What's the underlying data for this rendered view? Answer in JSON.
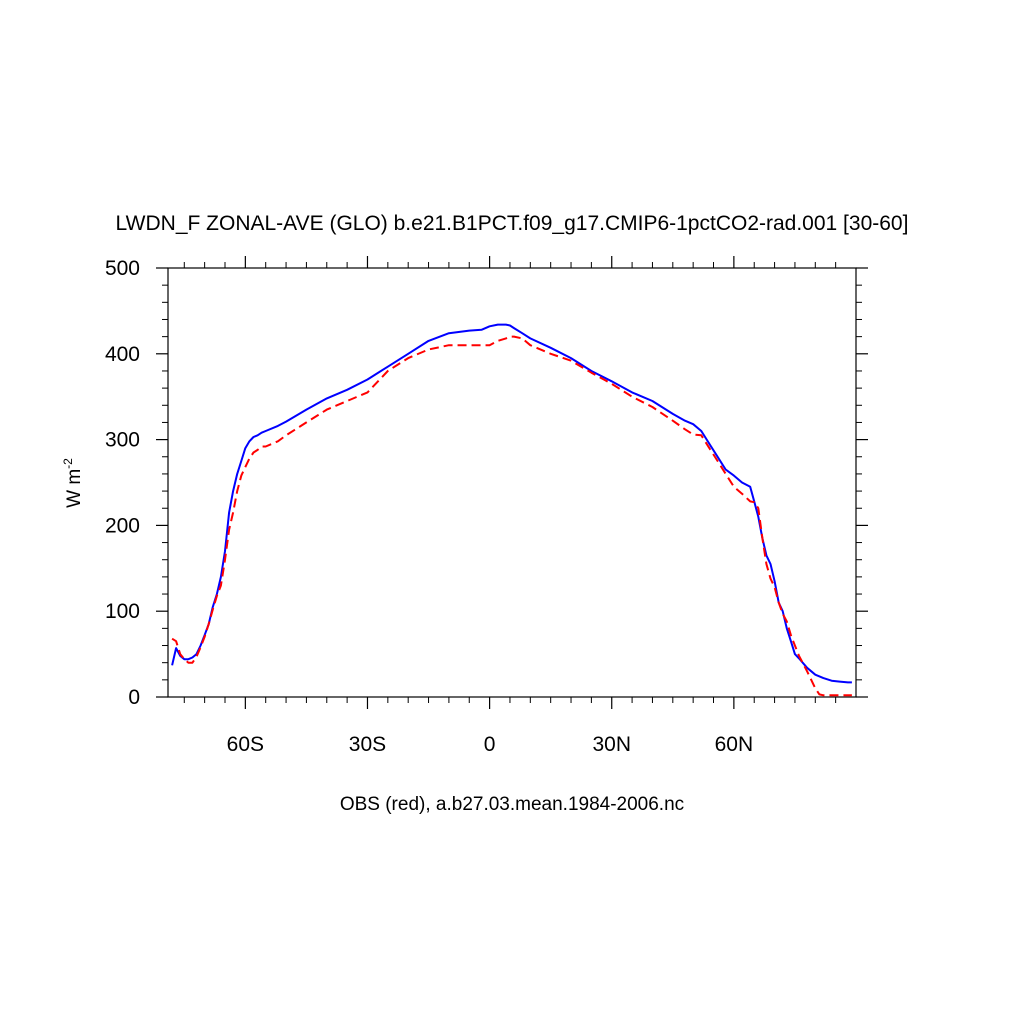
{
  "chart_data": {
    "type": "line",
    "title": "LWDN_F ZONAL-AVE (GLO) b.e21.B1PCT.f09_g17.CMIP6-1pctCO2-rad.001 [30-60]",
    "xlabel": "OBS (red), a.b27.03.mean.1984-2006.nc",
    "ylabel": "W m",
    "ylabel_superscript": "-2",
    "xlim": [
      -79,
      90
    ],
    "ylim": [
      0,
      500
    ],
    "grid": false,
    "legend": "none",
    "x_ticks": [
      {
        "value": -60,
        "label": "60S"
      },
      {
        "value": -30,
        "label": "30S"
      },
      {
        "value": 0,
        "label": "0"
      },
      {
        "value": 30,
        "label": "30N"
      },
      {
        "value": 60,
        "label": "60N"
      }
    ],
    "y_ticks": [
      {
        "value": 0,
        "label": "0"
      },
      {
        "value": 100,
        "label": "100"
      },
      {
        "value": 200,
        "label": "200"
      },
      {
        "value": 300,
        "label": "300"
      },
      {
        "value": 400,
        "label": "400"
      },
      {
        "value": 500,
        "label": "500"
      }
    ],
    "series": [
      {
        "color": "#0000ff",
        "style": "solid",
        "x": [
          -78,
          -77,
          -76,
          -75,
          -74,
          -73,
          -72,
          -71,
          -70,
          -69,
          -68,
          -67,
          -66,
          -65,
          -64,
          -63,
          -62,
          -61,
          -60,
          -59,
          -58,
          -57,
          -56,
          -55,
          -52,
          -50,
          -45,
          -40,
          -35,
          -30,
          -25,
          -20,
          -15,
          -10,
          -5,
          -2,
          0,
          2,
          4,
          5,
          6,
          8,
          10,
          15,
          20,
          25,
          30,
          35,
          40,
          45,
          48,
          50,
          52,
          54,
          56,
          58,
          60,
          62,
          64,
          65,
          66,
          67,
          68,
          69,
          70,
          71,
          72,
          73,
          74,
          75,
          76,
          78,
          80,
          82,
          84,
          86,
          88,
          89
        ],
        "y": [
          37,
          57,
          48,
          44,
          44,
          46,
          50,
          60,
          72,
          85,
          105,
          120,
          140,
          170,
          215,
          240,
          260,
          275,
          290,
          298,
          303,
          305,
          308,
          310,
          316,
          321,
          335,
          348,
          358,
          370,
          385,
          400,
          415,
          424,
          427,
          428,
          432,
          434,
          434,
          433,
          430,
          424,
          418,
          407,
          395,
          380,
          368,
          355,
          345,
          330,
          322,
          318,
          310,
          295,
          280,
          265,
          258,
          250,
          245,
          228,
          210,
          185,
          165,
          155,
          135,
          110,
          100,
          80,
          65,
          50,
          45,
          34,
          26,
          22,
          19,
          18,
          17,
          17
        ]
      },
      {
        "color": "#ff0000",
        "style": "dashed",
        "x": [
          -78,
          -77,
          -76,
          -75,
          -74,
          -73,
          -72,
          -71,
          -70,
          -69,
          -68,
          -67,
          -66,
          -65,
          -64,
          -63,
          -62,
          -61,
          -60,
          -59,
          -58,
          -57,
          -56,
          -55,
          -52,
          -50,
          -45,
          -40,
          -35,
          -30,
          -25,
          -20,
          -15,
          -10,
          -5,
          -2,
          0,
          2,
          4,
          5,
          6,
          8,
          10,
          15,
          20,
          25,
          30,
          35,
          40,
          45,
          48,
          50,
          52,
          54,
          56,
          58,
          60,
          62,
          64,
          65,
          66,
          67,
          68,
          69,
          70,
          71,
          72,
          73,
          74,
          75,
          76,
          78,
          80,
          81,
          82,
          84,
          86,
          88,
          89
        ],
        "y": [
          68,
          65,
          50,
          44,
          40,
          40,
          47,
          58,
          70,
          85,
          102,
          118,
          130,
          160,
          195,
          215,
          240,
          258,
          268,
          278,
          285,
          288,
          292,
          292,
          298,
          305,
          320,
          335,
          345,
          355,
          380,
          395,
          405,
          410,
          410,
          410,
          410,
          415,
          418,
          420,
          420,
          418,
          410,
          400,
          392,
          378,
          365,
          350,
          338,
          322,
          312,
          306,
          305,
          290,
          275,
          260,
          245,
          237,
          228,
          227,
          220,
          185,
          155,
          138,
          128,
          110,
          97,
          88,
          72,
          60,
          48,
          30,
          10,
          3,
          2,
          2,
          2,
          2,
          2
        ]
      }
    ]
  }
}
